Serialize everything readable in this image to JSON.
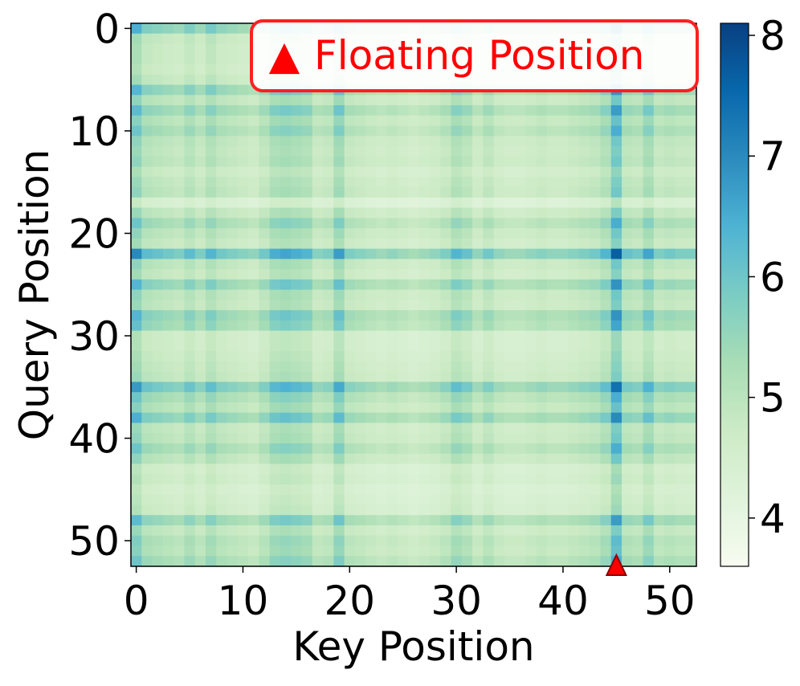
{
  "chart_data": {
    "type": "heatmap",
    "xlabel": "Key Position",
    "ylabel": "Query Position",
    "x_range": [
      0,
      52
    ],
    "y_range": [
      0,
      52
    ],
    "y_axis_inverted": true,
    "xticks": [
      0,
      10,
      20,
      30,
      40,
      50
    ],
    "yticks": [
      0,
      10,
      20,
      30,
      40,
      50
    ],
    "colorbar": {
      "range": [
        3.6,
        8.1
      ],
      "ticks": [
        4,
        5,
        6,
        7,
        8
      ],
      "colormap": [
        "#f7fcf0",
        "#e0f3db",
        "#ccebc5",
        "#a8ddb5",
        "#7bccc4",
        "#4eb3d3",
        "#2b8cbe",
        "#0868ac",
        "#084081"
      ]
    },
    "row_intensity": [
      0.75,
      0.25,
      0.2,
      0.2,
      0.15,
      0.25,
      0.7,
      0.35,
      0.65,
      0.4,
      0.55,
      0.35,
      0.3,
      0.35,
      0.2,
      0.3,
      0.35,
      0.0,
      0.3,
      0.55,
      0.35,
      0.25,
      1.0,
      0.35,
      0.25,
      0.7,
      0.35,
      0.3,
      0.7,
      0.6,
      0.15,
      0.15,
      0.2,
      0.25,
      0.3,
      0.9,
      0.55,
      0.4,
      0.75,
      0.3,
      0.35,
      0.55,
      0.35,
      0.1,
      0.15,
      0.05,
      0.1,
      0.15,
      0.65,
      0.3,
      0.45,
      0.4,
      0.55
    ],
    "col_intensity": [
      0.75,
      0.45,
      0.4,
      0.35,
      0.3,
      0.45,
      0.3,
      0.5,
      0.35,
      0.3,
      0.25,
      0.2,
      0.35,
      0.55,
      0.6,
      0.55,
      0.5,
      0.25,
      0.3,
      0.65,
      0.3,
      0.25,
      0.2,
      0.15,
      0.2,
      0.15,
      0.1,
      0.15,
      0.2,
      0.3,
      0.5,
      0.4,
      0.2,
      0.35,
      0.2,
      0.15,
      0.15,
      0.2,
      0.25,
      0.2,
      0.2,
      0.25,
      0.3,
      0.35,
      0.5,
      1.0,
      0.4,
      0.35,
      0.6,
      0.3,
      0.35,
      0.3,
      0.3
    ],
    "highlight": {
      "key_position": 45
    },
    "annotation": {
      "symbol": "▲",
      "text": "Floating Position",
      "color": "#ff0000"
    }
  }
}
